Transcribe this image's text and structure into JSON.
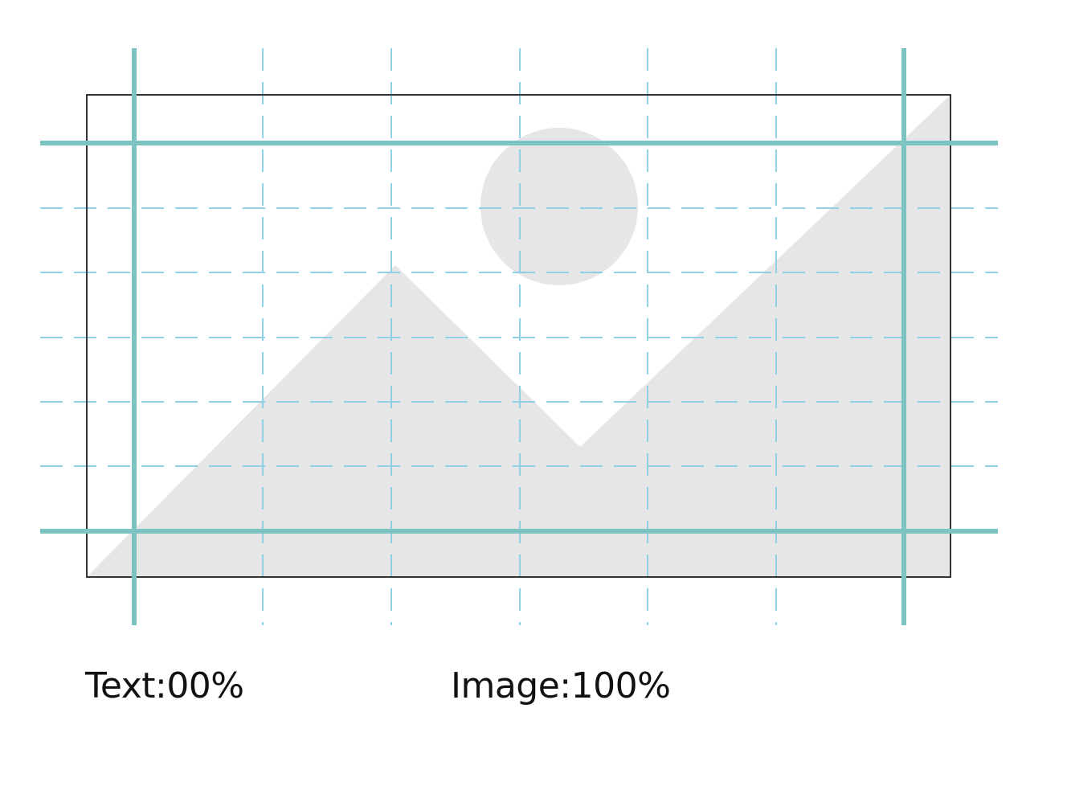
{
  "colors": {
    "guide_solid": "#7cc3c2",
    "guide_dashed": "#8fd0e2",
    "frame": "#333333",
    "placeholder_fill": "#e6e6e7",
    "text": "#111111"
  },
  "placeholder": {
    "icon": "image-placeholder-icon"
  },
  "labels": {
    "text_ratio": "Text:00%",
    "image_ratio": "Image:100%"
  }
}
